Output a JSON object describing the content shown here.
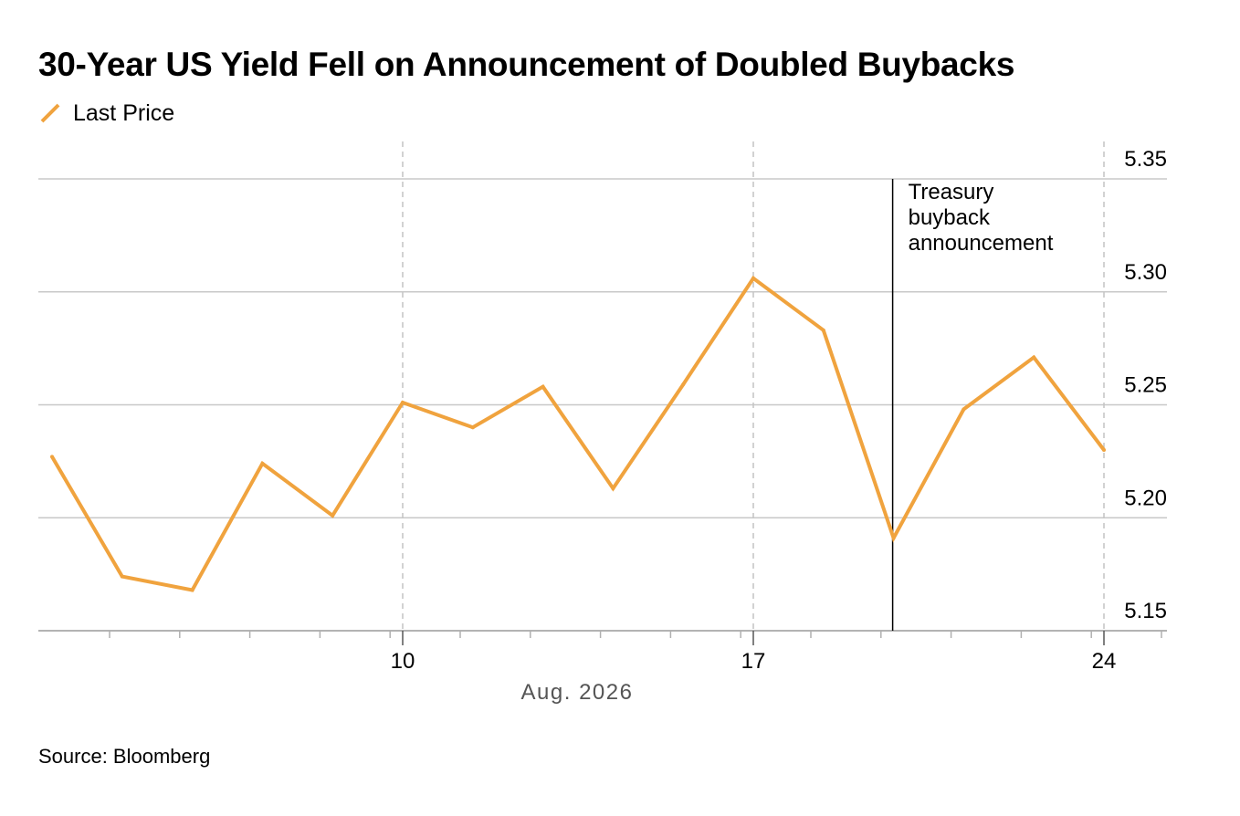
{
  "chart_data": {
    "type": "line",
    "title": "30-Year US Yield Fell on Announcement of Doubled Buybacks",
    "xlabel": "Aug. 2026",
    "ylabel": "",
    "x_tick_labels": [
      "10",
      "17",
      "24"
    ],
    "y_tick_labels": [
      "5.35",
      "5.30",
      "5.25",
      "5.20",
      "5.15"
    ],
    "ylim": [
      5.15,
      5.35
    ],
    "grid": true,
    "legend": "top-left",
    "series": [
      {
        "name": "Last Price",
        "color": "#F0A33E",
        "x": [
          "Aug 3",
          "Aug 4",
          "Aug 5",
          "Aug 6",
          "Aug 7",
          "Aug 10",
          "Aug 11",
          "Aug 12",
          "Aug 13",
          "Aug 14",
          "Aug 17",
          "Aug 18",
          "Aug 19",
          "Aug 20",
          "Aug 21",
          "Aug 24"
        ],
        "values": [
          5.227,
          5.174,
          5.168,
          5.224,
          5.201,
          5.251,
          5.24,
          5.258,
          5.213,
          5.259,
          5.306,
          5.283,
          5.191,
          5.248,
          5.271,
          5.23
        ]
      }
    ],
    "annotations": [
      {
        "x": "Aug 19",
        "text": [
          "Treasury",
          "buyback",
          "announcement"
        ]
      }
    ]
  },
  "source": "Source: Bloomberg"
}
